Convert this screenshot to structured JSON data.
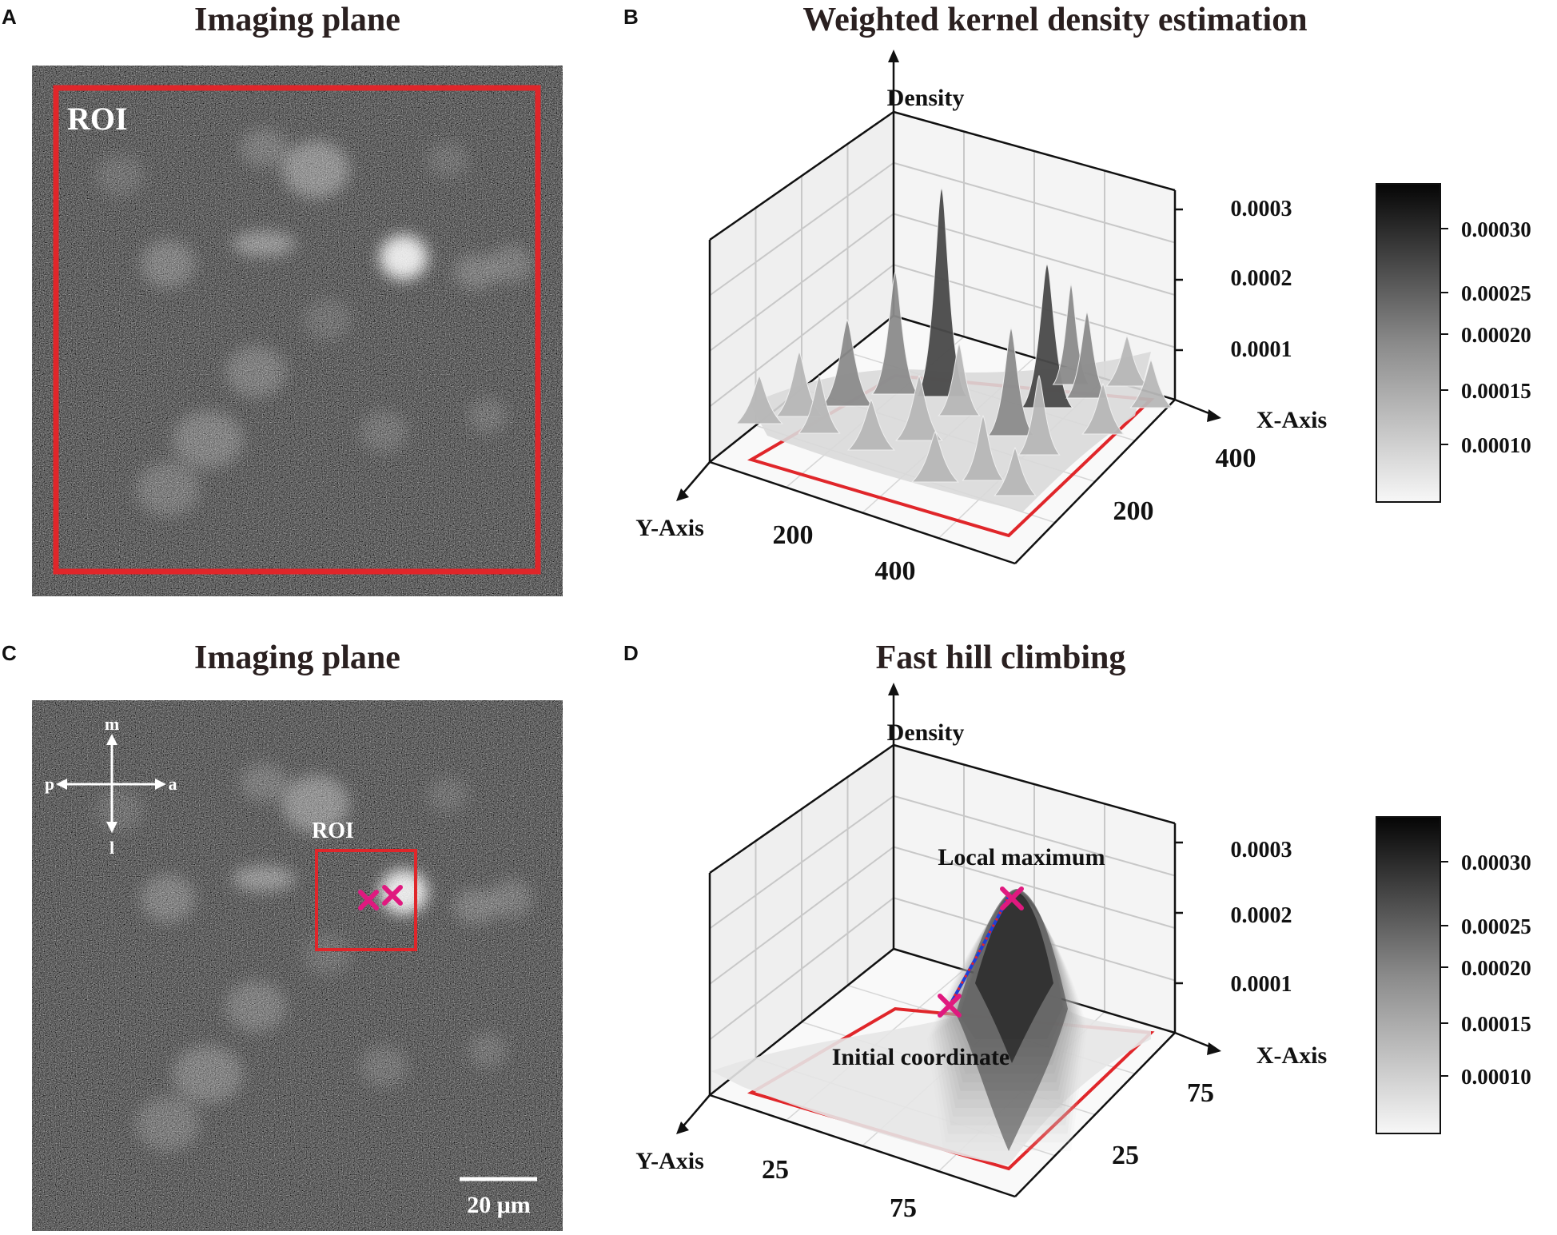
{
  "panels": {
    "a": {
      "label": "A",
      "title": "Imaging plane",
      "roi_label": "ROI"
    },
    "b": {
      "label": "B",
      "title": "Weighted kernel density estimation",
      "z_axis_label": "Density",
      "x_axis_label": "X-Axis",
      "y_axis_label": "Y-Axis",
      "z_ticks": [
        "0.0003",
        "0.0002",
        "0.0001"
      ],
      "x_ticks": [
        "400",
        "200"
      ],
      "y_ticks": [
        "200",
        "400"
      ]
    },
    "c": {
      "label": "C",
      "title": "Imaging plane",
      "roi_label": "ROI",
      "orientation": {
        "up": "m",
        "down": "l",
        "left": "p",
        "right": "a"
      },
      "scale_bar": "20 μm"
    },
    "d": {
      "label": "D",
      "title": "Fast hill climbing",
      "z_axis_label": "Density",
      "x_axis_label": "X-Axis",
      "y_axis_label": "Y-Axis",
      "z_ticks": [
        "0.0003",
        "0.0002",
        "0.0001"
      ],
      "x_ticks": [
        "75",
        "25"
      ],
      "y_ticks": [
        "25",
        "75"
      ],
      "annotation_max": "Local maximum",
      "annotation_init": "Initial coordinate"
    }
  },
  "colorbar": {
    "ticks": [
      "0.00030",
      "0.00025",
      "0.00020",
      "0.00015",
      "0.00010"
    ]
  },
  "colors": {
    "roi": "#e0262a",
    "marker": "#e0197f",
    "path": "#1f3fd6",
    "axis": "#111111"
  }
}
